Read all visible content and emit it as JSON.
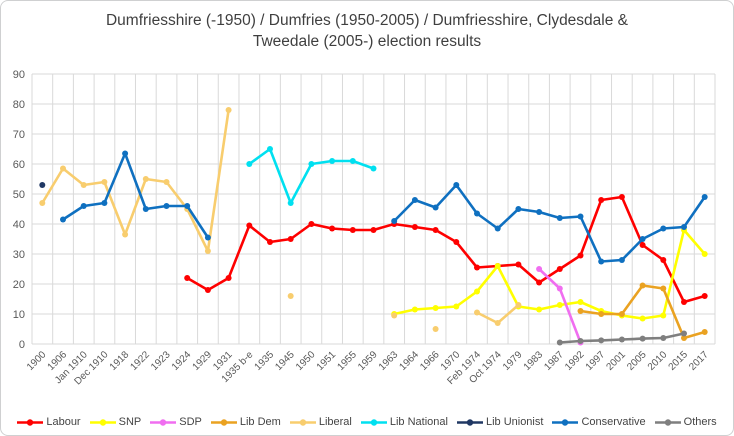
{
  "title": {
    "line1": "Dumfriesshire (-1950) / Dumfries (1950-2005) / Dumfriesshire, Clydesdale &",
    "line2": "Tweedale (2005-) election results"
  },
  "chart_data": {
    "type": "line",
    "title": "Dumfriesshire (-1950) / Dumfries (1950-2005) / Dumfriesshire, Clydesdale & Tweedale (2005-) election results",
    "xlabel": "",
    "ylabel": "",
    "ylim": [
      0,
      90
    ],
    "ytick_step": 10,
    "grid": true,
    "legend_position": "bottom",
    "marker": "round",
    "colors": {
      "gridline": "#d9d9d9",
      "tick_label": "#595959",
      "title_text": "#3f3f3f"
    },
    "categories": [
      "1900",
      "1906",
      "Jan 1910",
      "Dec 1910",
      "1918",
      "1922",
      "1923",
      "1924",
      "1929",
      "1931",
      "1935 b-e",
      "1935",
      "1945",
      "1950",
      "1951",
      "1955",
      "1959",
      "1963",
      "1964",
      "1966",
      "1970",
      "Feb 1974",
      "Oct 1974",
      "1979",
      "1983",
      "1987",
      "1992",
      "1997",
      "2001",
      "2005",
      "2010",
      "2015",
      "2017"
    ],
    "series": [
      {
        "name": "Labour",
        "color": "#fe0000",
        "values": [
          null,
          null,
          null,
          null,
          null,
          null,
          null,
          22,
          18,
          22,
          39.5,
          34,
          35,
          40,
          38.5,
          38,
          38,
          40,
          39,
          38,
          34,
          25.5,
          26,
          26.5,
          20.5,
          25,
          29.5,
          48,
          49,
          33,
          28,
          14,
          16
        ]
      },
      {
        "name": "SNP",
        "color": "#ffff00",
        "values": [
          null,
          null,
          null,
          null,
          null,
          null,
          null,
          null,
          null,
          null,
          null,
          null,
          null,
          null,
          null,
          null,
          null,
          10,
          11.5,
          12,
          12.5,
          17.5,
          26,
          12.5,
          11.5,
          13,
          14,
          11,
          9.5,
          8.5,
          9.5,
          38,
          30
        ]
      },
      {
        "name": "SDP",
        "color": "#f06ef0",
        "values": [
          null,
          null,
          null,
          null,
          null,
          null,
          null,
          null,
          null,
          null,
          null,
          null,
          null,
          null,
          null,
          null,
          null,
          null,
          null,
          null,
          null,
          null,
          null,
          null,
          25,
          18.5,
          0.5,
          null,
          null,
          null,
          null,
          null,
          null
        ]
      },
      {
        "name": "Lib Dem",
        "color": "#eaa221",
        "values": [
          null,
          null,
          null,
          null,
          null,
          null,
          null,
          null,
          null,
          null,
          null,
          null,
          null,
          null,
          null,
          null,
          null,
          null,
          null,
          null,
          null,
          null,
          null,
          null,
          null,
          null,
          11,
          10,
          10,
          19.5,
          18.5,
          2,
          4
        ]
      },
      {
        "name": "Liberal",
        "color": "#f8cd6e",
        "values": [
          47,
          58.5,
          53,
          54,
          36.5,
          55,
          54,
          45,
          31,
          78,
          null,
          null,
          16,
          null,
          null,
          null,
          null,
          9.5,
          null,
          5,
          null,
          10.5,
          7,
          13,
          null,
          null,
          null,
          null,
          null,
          null,
          null,
          null,
          null
        ]
      },
      {
        "name": "Lib National",
        "color": "#00e0f0",
        "values": [
          null,
          null,
          null,
          null,
          null,
          null,
          null,
          null,
          null,
          null,
          60,
          65,
          47,
          60,
          61,
          61,
          58.5,
          null,
          null,
          null,
          null,
          null,
          null,
          null,
          null,
          null,
          null,
          null,
          null,
          null,
          null,
          null,
          null
        ]
      },
      {
        "name": "Lib Unionist",
        "color": "#203864",
        "values": [
          53,
          null,
          null,
          null,
          null,
          null,
          null,
          null,
          null,
          null,
          null,
          null,
          null,
          null,
          null,
          null,
          null,
          null,
          null,
          null,
          null,
          null,
          null,
          null,
          null,
          null,
          null,
          null,
          null,
          null,
          null,
          null,
          null
        ]
      },
      {
        "name": "Conservative",
        "color": "#0f70c0",
        "values": [
          null,
          41.5,
          46,
          47,
          63.5,
          45,
          46,
          46,
          35.5,
          null,
          null,
          null,
          null,
          null,
          null,
          null,
          null,
          41,
          48,
          45.5,
          53,
          43.5,
          38.5,
          45,
          44,
          42,
          42.5,
          27.5,
          28,
          35,
          38.5,
          39,
          49
        ]
      },
      {
        "name": "Others",
        "color": "#7f7f7f",
        "values": [
          null,
          null,
          null,
          null,
          null,
          null,
          null,
          null,
          null,
          null,
          null,
          null,
          null,
          null,
          null,
          null,
          null,
          null,
          null,
          null,
          null,
          null,
          null,
          null,
          null,
          0.5,
          1,
          1.2,
          1.5,
          1.8,
          2,
          3.5,
          null
        ]
      }
    ]
  }
}
